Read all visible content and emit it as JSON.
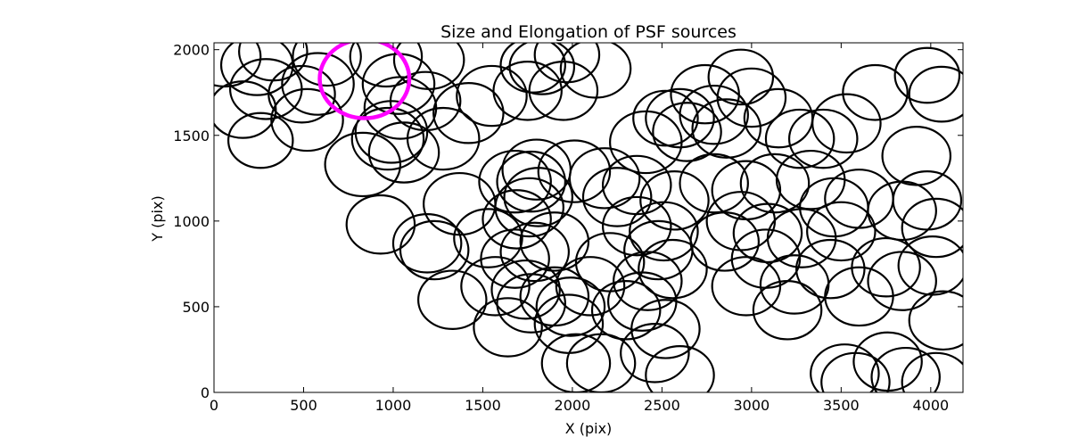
{
  "chart_data": {
    "type": "scatter",
    "title": "Size and Elongation of PSF sources",
    "xlabel": "X (pix)",
    "ylabel": "Y (pix)",
    "xlim": [
      0,
      4180
    ],
    "ylim": [
      0,
      2040
    ],
    "xticks": [
      0,
      500,
      1000,
      1500,
      2000,
      2500,
      3000,
      3500,
      4000
    ],
    "yticks": [
      0,
      500,
      1000,
      1500,
      2000
    ],
    "xtick_labels": [
      "0",
      "500",
      "1000",
      "1500",
      "2000",
      "2500",
      "3000",
      "3500",
      "4000"
    ],
    "ytick_labels": [
      "0",
      "500",
      "1000",
      "1500",
      "2000"
    ],
    "grid": false,
    "marker": "ellipse outline",
    "colors": {
      "normal": "#000000",
      "highlight": "#ff00ff"
    },
    "highlight": {
      "x": 840,
      "y": 1830,
      "rx": 250,
      "ry": 230
    },
    "sources": [
      [
        60,
        1960,
        200,
        175
      ],
      [
        240,
        1910,
        200,
        175
      ],
      [
        330,
        1990,
        190,
        170
      ],
      [
        160,
        1650,
        185,
        165
      ],
      [
        290,
        1770,
        200,
        175
      ],
      [
        490,
        1740,
        185,
        165
      ],
      [
        630,
        1960,
        190,
        170
      ],
      [
        580,
        1800,
        200,
        180
      ],
      [
        520,
        1590,
        200,
        180
      ],
      [
        260,
        1470,
        180,
        160
      ],
      [
        830,
        1330,
        210,
        185
      ],
      [
        960,
        1960,
        200,
        175
      ],
      [
        1200,
        1940,
        195,
        170
      ],
      [
        1030,
        1800,
        200,
        175
      ],
      [
        1180,
        1700,
        195,
        170
      ],
      [
        1040,
        1660,
        200,
        180
      ],
      [
        990,
        1520,
        200,
        180
      ],
      [
        970,
        1480,
        200,
        180
      ],
      [
        1060,
        1400,
        195,
        175
      ],
      [
        1280,
        1480,
        200,
        180
      ],
      [
        1420,
        1630,
        195,
        175
      ],
      [
        1550,
        1730,
        195,
        175
      ],
      [
        1780,
        1910,
        180,
        160
      ],
      [
        1830,
        1900,
        180,
        160
      ],
      [
        1970,
        1970,
        180,
        160
      ],
      [
        2130,
        1890,
        195,
        170
      ],
      [
        1750,
        1760,
        190,
        170
      ],
      [
        1950,
        1760,
        190,
        170
      ],
      [
        1800,
        1300,
        190,
        175
      ],
      [
        1770,
        1230,
        190,
        175
      ],
      [
        1680,
        1230,
        200,
        180
      ],
      [
        2010,
        1290,
        200,
        180
      ],
      [
        2180,
        1250,
        195,
        175
      ],
      [
        2250,
        1140,
        190,
        170
      ],
      [
        2360,
        1210,
        190,
        170
      ],
      [
        2410,
        1460,
        200,
        180
      ],
      [
        2520,
        1600,
        180,
        160
      ],
      [
        2600,
        1600,
        190,
        170
      ],
      [
        2640,
        1520,
        190,
        170
      ],
      [
        2790,
        1620,
        190,
        170
      ],
      [
        2860,
        1540,
        190,
        170
      ],
      [
        2740,
        1740,
        190,
        170
      ],
      [
        2940,
        1840,
        180,
        160
      ],
      [
        3000,
        1720,
        190,
        170
      ],
      [
        3150,
        1600,
        190,
        170
      ],
      [
        3270,
        1480,
        190,
        170
      ],
      [
        3400,
        1480,
        190,
        170
      ],
      [
        3530,
        1570,
        190,
        170
      ],
      [
        3690,
        1750,
        180,
        160
      ],
      [
        3920,
        1380,
        190,
        170
      ],
      [
        3980,
        1850,
        180,
        160
      ],
      [
        4060,
        1740,
        180,
        160
      ],
      [
        2570,
        1120,
        190,
        170
      ],
      [
        2790,
        1220,
        190,
        170
      ],
      [
        2970,
        1180,
        190,
        170
      ],
      [
        3130,
        1220,
        190,
        170
      ],
      [
        3330,
        1240,
        190,
        170
      ],
      [
        3460,
        1080,
        190,
        170
      ],
      [
        3600,
        1130,
        190,
        170
      ],
      [
        3840,
        1060,
        190,
        170
      ],
      [
        3980,
        1120,
        190,
        170
      ],
      [
        4030,
        960,
        190,
        170
      ],
      [
        3280,
        900,
        190,
        170
      ],
      [
        3080,
        780,
        190,
        170
      ],
      [
        2940,
        1000,
        190,
        170
      ],
      [
        2360,
        970,
        190,
        170
      ],
      [
        2510,
        940,
        190,
        170
      ],
      [
        2480,
        830,
        190,
        170
      ],
      [
        2210,
        760,
        190,
        170
      ],
      [
        2100,
        620,
        190,
        170
      ],
      [
        2420,
        650,
        190,
        170
      ],
      [
        2560,
        720,
        190,
        170
      ],
      [
        2300,
        480,
        190,
        170
      ],
      [
        2390,
        530,
        190,
        170
      ],
      [
        2520,
        370,
        190,
        170
      ],
      [
        2460,
        230,
        190,
        170
      ],
      [
        2020,
        170,
        190,
        170
      ],
      [
        2160,
        170,
        190,
        170
      ],
      [
        2600,
        100,
        190,
        170
      ],
      [
        3520,
        110,
        190,
        170
      ],
      [
        3580,
        60,
        190,
        170
      ],
      [
        3760,
        180,
        190,
        170
      ],
      [
        3860,
        90,
        190,
        170
      ],
      [
        4030,
        60,
        190,
        170
      ],
      [
        4070,
        420,
        190,
        170
      ],
      [
        4010,
        740,
        190,
        170
      ],
      [
        3840,
        650,
        190,
        170
      ],
      [
        3600,
        560,
        190,
        170
      ],
      [
        3440,
        720,
        190,
        170
      ],
      [
        3240,
        630,
        190,
        170
      ],
      [
        3200,
        480,
        190,
        170
      ],
      [
        2970,
        620,
        190,
        170
      ],
      [
        3090,
        930,
        190,
        170
      ],
      [
        1900,
        880,
        190,
        170
      ],
      [
        1790,
        820,
        190,
        170
      ],
      [
        1680,
        780,
        190,
        170
      ],
      [
        1570,
        620,
        190,
        170
      ],
      [
        1640,
        380,
        190,
        170
      ],
      [
        1330,
        540,
        190,
        170
      ],
      [
        1230,
        830,
        190,
        170
      ],
      [
        1190,
        870,
        190,
        170
      ],
      [
        930,
        980,
        190,
        170
      ],
      [
        1370,
        1100,
        200,
        180
      ],
      [
        1530,
        900,
        190,
        170
      ],
      [
        1760,
        1080,
        190,
        170
      ],
      [
        1690,
        1010,
        190,
        170
      ],
      [
        1810,
        1140,
        190,
        170
      ],
      [
        1900,
        560,
        190,
        170
      ],
      [
        1770,
        520,
        190,
        170
      ],
      [
        1740,
        600,
        190,
        170
      ],
      [
        1990,
        500,
        190,
        170
      ],
      [
        1980,
        400,
        190,
        170
      ],
      [
        2850,
        880,
        190,
        170
      ],
      [
        3500,
        940,
        190,
        170
      ],
      [
        3750,
        730,
        190,
        170
      ]
    ]
  }
}
